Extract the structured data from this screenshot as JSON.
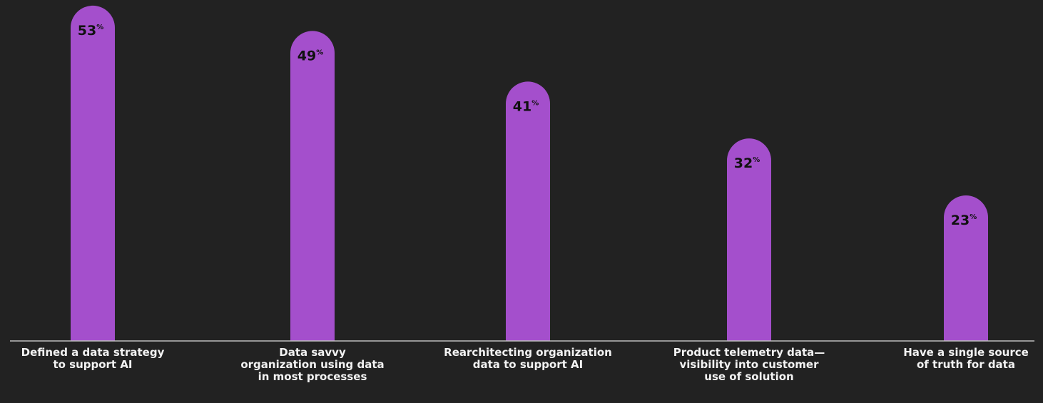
{
  "chart_data": {
    "type": "bar",
    "categories": [
      "Defined a data strategy\nto support AI",
      "Data savvy\norganization using data\nin most processes",
      "Rearchitecting organization\ndata to support AI",
      "Product telemetry data—\nvisibility into customer\nuse of solution",
      "Have a single source\nof truth for data"
    ],
    "values": [
      53,
      49,
      41,
      32,
      23
    ],
    "value_suffix": "%",
    "title": "",
    "xlabel": "",
    "ylabel": "",
    "ylim": [
      0,
      58
    ],
    "grid": false,
    "legend": "none"
  },
  "colors": {
    "background": "#222222",
    "bar": "#a44fcc",
    "baseline": "#bdbdbd",
    "value_text": "#111111",
    "label_text": "#f2f2f2"
  }
}
